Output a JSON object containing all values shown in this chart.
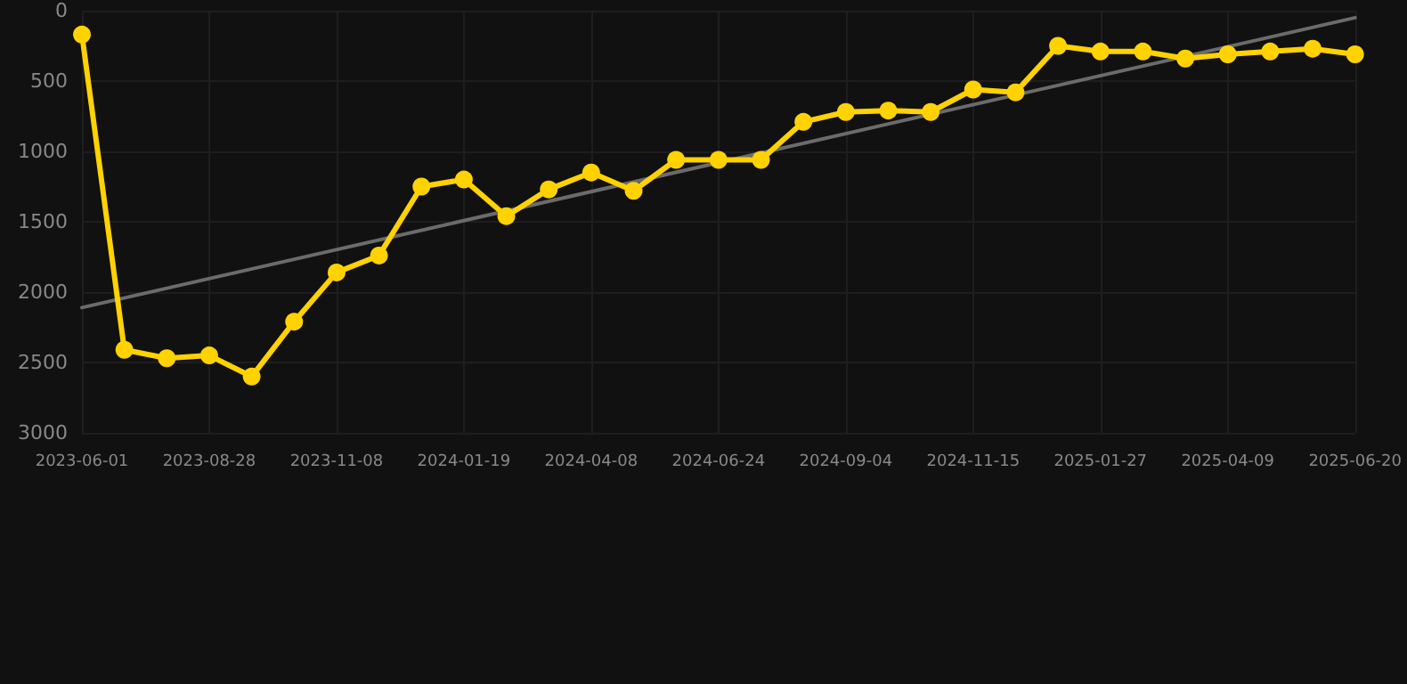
{
  "chart_data": {
    "type": "line",
    "categories": [
      "2023-06-01",
      null,
      null,
      "2023-08-28",
      null,
      null,
      "2023-11-08",
      null,
      null,
      "2024-01-19",
      null,
      null,
      "2024-04-08",
      null,
      null,
      "2024-06-24",
      null,
      null,
      "2024-09-04",
      null,
      null,
      "2024-11-15",
      null,
      null,
      "2025-01-27",
      null,
      null,
      "2025-04-09",
      null,
      null,
      "2025-06-20"
    ],
    "series": [
      {
        "color": "#ffd200",
        "marker": "circle",
        "values": [
          170,
          2410,
          2470,
          2450,
          2600,
          2210,
          1860,
          1740,
          1250,
          1200,
          1460,
          1270,
          1150,
          1280,
          1060,
          1060,
          1060,
          790,
          720,
          710,
          720,
          560,
          580,
          250,
          290,
          290,
          340,
          310,
          290,
          270,
          310
        ]
      },
      {
        "type": "line",
        "color": "#6b6b6b",
        "marker": "none",
        "values": [
          2110,
          null,
          null,
          null,
          null,
          null,
          null,
          null,
          null,
          null,
          null,
          null,
          null,
          null,
          null,
          null,
          null,
          null,
          null,
          null,
          null,
          null,
          null,
          null,
          null,
          null,
          null,
          null,
          null,
          null,
          50
        ]
      }
    ],
    "ylim": [
      3000,
      0
    ],
    "yticks": [
      0,
      500,
      1000,
      1500,
      2000,
      2500,
      3000
    ],
    "grid": true,
    "line_style": "solid"
  }
}
